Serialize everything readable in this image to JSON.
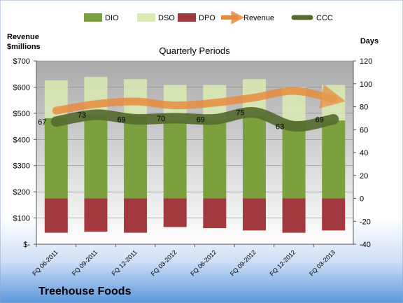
{
  "chart_data": {
    "type": "bar",
    "title": "Quarterly Periods",
    "company": "Treehouse Foods",
    "left_axis_label": [
      "Revenue",
      "$millions"
    ],
    "right_axis_label": "Days",
    "categories": [
      "FQ 06-2011",
      "FQ 09-2011",
      "FQ 12-2011",
      "FQ 03-2012",
      "FQ 06-2012",
      "FQ 09-2012",
      "FQ 12-2012",
      "FQ 03-2013"
    ],
    "left_ticks": [
      "$-",
      "$100",
      "$200",
      "$300",
      "$400",
      "$500",
      "$600",
      "$700"
    ],
    "right_ticks": [
      "-40",
      "-20",
      "0",
      "20",
      "40",
      "60",
      "80",
      "100",
      "120"
    ],
    "ylim_right": [
      -40,
      120
    ],
    "ylim_left": [
      0,
      700
    ],
    "legend_position": "top",
    "series": [
      {
        "name": "DIO",
        "color": "#7aa13d",
        "values": [
          70,
          73,
          72,
          68,
          68,
          72,
          67,
          68
        ]
      },
      {
        "name": "DSO",
        "color": "#d9ebb0",
        "values": [
          33,
          33,
          32,
          31,
          31,
          32,
          30,
          31
        ]
      },
      {
        "name": "DPO",
        "color": "#a1393f",
        "values": [
          -30,
          -29,
          -30,
          -25,
          -26,
          -28,
          -30,
          -28
        ]
      },
      {
        "name": "Revenue",
        "color": "#e88a3c",
        "values": [
          510,
          535,
          545,
          530,
          540,
          560,
          585,
          555
        ]
      },
      {
        "name": "CCC",
        "color": "#556b2f",
        "values": [
          67,
          73,
          69,
          70,
          69,
          75,
          63,
          69
        ]
      }
    ],
    "ccc_labels": [
      "67",
      "73",
      "69",
      "70",
      "69",
      "75",
      "63",
      "69"
    ]
  }
}
